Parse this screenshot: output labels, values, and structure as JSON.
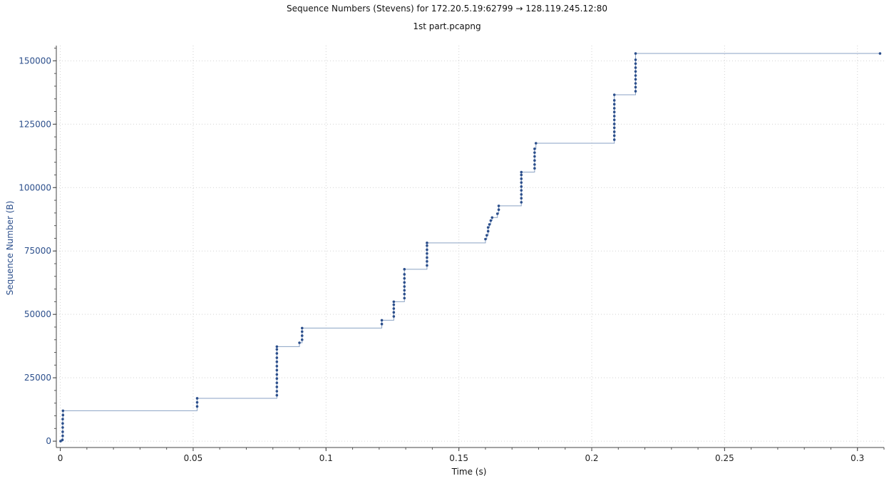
{
  "title": "Sequence Numbers (Stevens) for 172.20.5.19:62799 → 128.119.245.12:80",
  "subtitle": "1st part.pcapng",
  "colors": {
    "axis_label": "#2c4f8c",
    "series": "#2c4f8c",
    "step_line": "#8aa2c4",
    "grid": "#d2d2d2"
  },
  "chart_data": {
    "type": "scatter",
    "xlabel": "Time (s)",
    "ylabel": "Sequence Number (B)",
    "xlim": [
      -0.0015,
      0.31
    ],
    "ylim": [
      -2500,
      156000
    ],
    "grid": true,
    "step_line": true,
    "x_ticks": [
      0,
      0.05,
      0.1,
      0.15,
      0.2,
      0.25,
      0.3
    ],
    "x_tick_labels": [
      "0",
      "0.05",
      "0.1",
      "0.15",
      "0.2",
      "0.25",
      "0.3"
    ],
    "y_ticks": [
      0,
      25000,
      50000,
      75000,
      100000,
      125000,
      150000
    ],
    "y_tick_labels": [
      "0",
      "25000",
      "50000",
      "75000",
      "100000",
      "125000",
      "150000"
    ],
    "series": [
      {
        "points": [
          [
            0.0001,
            0
          ],
          [
            0.0008,
            500
          ],
          [
            0.0009,
            2100
          ],
          [
            0.0009,
            3700
          ],
          [
            0.0009,
            5400
          ],
          [
            0.0009,
            7000
          ],
          [
            0.0009,
            8700
          ],
          [
            0.001,
            10300
          ],
          [
            0.001,
            12000
          ],
          [
            0.0515,
            13700
          ],
          [
            0.0515,
            15300
          ],
          [
            0.0515,
            16900
          ],
          [
            0.0815,
            18100
          ],
          [
            0.0815,
            19700
          ],
          [
            0.0815,
            21400
          ],
          [
            0.0815,
            23000
          ],
          [
            0.0815,
            24700
          ],
          [
            0.0815,
            26300
          ],
          [
            0.0815,
            28000
          ],
          [
            0.0815,
            29600
          ],
          [
            0.0815,
            31300
          ],
          [
            0.0815,
            32900
          ],
          [
            0.0815,
            34600
          ],
          [
            0.0815,
            36200
          ],
          [
            0.0815,
            37300
          ],
          [
            0.09,
            38800
          ],
          [
            0.091,
            40000
          ],
          [
            0.091,
            41600
          ],
          [
            0.091,
            43200
          ],
          [
            0.091,
            44600
          ],
          [
            0.121,
            46200
          ],
          [
            0.121,
            47700
          ],
          [
            0.1255,
            49200
          ],
          [
            0.1255,
            50800
          ],
          [
            0.1255,
            52300
          ],
          [
            0.1255,
            53800
          ],
          [
            0.1255,
            55000
          ],
          [
            0.1295,
            56400
          ],
          [
            0.1295,
            58000
          ],
          [
            0.1295,
            59500
          ],
          [
            0.1295,
            61000
          ],
          [
            0.1295,
            62600
          ],
          [
            0.1295,
            64200
          ],
          [
            0.1295,
            65800
          ],
          [
            0.1295,
            67800
          ],
          [
            0.138,
            69300
          ],
          [
            0.138,
            70900
          ],
          [
            0.138,
            72400
          ],
          [
            0.138,
            74000
          ],
          [
            0.138,
            75500
          ],
          [
            0.138,
            77100
          ],
          [
            0.138,
            78200
          ],
          [
            0.16,
            79700
          ],
          [
            0.1605,
            81200
          ],
          [
            0.161,
            82800
          ],
          [
            0.161,
            84300
          ],
          [
            0.1615,
            85500
          ],
          [
            0.162,
            87000
          ],
          [
            0.1625,
            88200
          ],
          [
            0.1645,
            89700
          ],
          [
            0.165,
            91300
          ],
          [
            0.165,
            92800
          ],
          [
            0.1735,
            94200
          ],
          [
            0.1735,
            95800
          ],
          [
            0.1735,
            97300
          ],
          [
            0.1735,
            98900
          ],
          [
            0.1735,
            100400
          ],
          [
            0.1735,
            102000
          ],
          [
            0.1735,
            103500
          ],
          [
            0.1735,
            105000
          ],
          [
            0.1735,
            106100
          ],
          [
            0.1785,
            107600
          ],
          [
            0.1785,
            109100
          ],
          [
            0.1785,
            110700
          ],
          [
            0.1785,
            112300
          ],
          [
            0.1785,
            113800
          ],
          [
            0.1785,
            115300
          ],
          [
            0.179,
            117500
          ],
          [
            0.2085,
            118900
          ],
          [
            0.2085,
            120500
          ],
          [
            0.2085,
            122000
          ],
          [
            0.2085,
            123600
          ],
          [
            0.2085,
            125100
          ],
          [
            0.2085,
            126700
          ],
          [
            0.2085,
            128200
          ],
          [
            0.2085,
            129800
          ],
          [
            0.2085,
            131300
          ],
          [
            0.2085,
            132900
          ],
          [
            0.2085,
            134400
          ],
          [
            0.2085,
            136600
          ],
          [
            0.2165,
            138000
          ],
          [
            0.2165,
            139600
          ],
          [
            0.2165,
            141100
          ],
          [
            0.2165,
            142700
          ],
          [
            0.2165,
            144200
          ],
          [
            0.2165,
            145800
          ],
          [
            0.2165,
            147300
          ],
          [
            0.2165,
            148900
          ],
          [
            0.2165,
            150400
          ],
          [
            0.2165,
            152900
          ],
          [
            0.3085,
            152900
          ]
        ]
      }
    ]
  }
}
